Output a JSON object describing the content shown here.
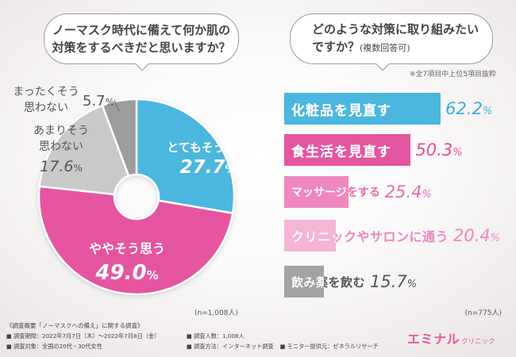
{
  "chart_data": [
    {
      "type": "pie",
      "question_lines": [
        "ノーマスク時代に備えて何か肌の",
        "対策をするべきだと思いますか？"
      ],
      "unit": "%",
      "slices": [
        {
          "label_lines": [
            "とてもそう思う"
          ],
          "value": 27.7,
          "value_label": "27.7",
          "color": "#4bb6de"
        },
        {
          "label_lines": [
            "ややそう思う"
          ],
          "value": 49.0,
          "value_label": "49.0",
          "color": "#e5559f"
        },
        {
          "label_lines": [
            "あまりそう",
            "思わない"
          ],
          "value": 17.6,
          "value_label": "17.6",
          "color": "#c9c9c9"
        },
        {
          "label_lines": [
            "まったくそう",
            "思わない"
          ],
          "value": 5.7,
          "value_label": "5.7",
          "color": "#9d9d9d"
        }
      ],
      "sample": "(n=1,008人)"
    },
    {
      "type": "bar",
      "question_lines": [
        "どのような対策に取り組みたい",
        "ですか？"
      ],
      "question_note": "(複数回答可)",
      "note": "※全7項目中上位5項目抜粋",
      "unit": "%",
      "categories": [
        "化粧品を見直す",
        "食生活を見直す",
        "マッサージをする",
        "クリニックやサロンに通う",
        "飲み薬を飲む"
      ],
      "values": [
        62.2,
        50.3,
        25.4,
        20.4,
        15.7
      ],
      "value_labels": [
        "62.2",
        "50.3",
        "25.4",
        "20.4",
        "15.7"
      ],
      "xlim": [
        0,
        100
      ],
      "bar_colors": [
        "#4bb6de",
        "#e5559f",
        "#ee88bf",
        "#f4b5d6",
        "#a3a3a3"
      ],
      "label_colors": [
        "#ffffff",
        "#ffffff",
        "#e96caf",
        "#ec86bd",
        "#555555"
      ],
      "value_colors": [
        "#3aaedb",
        "#e24f9a",
        "#e96caf",
        "#ec86bd",
        "#555555"
      ],
      "sample": "(n=775人)"
    }
  ],
  "survey": {
    "title": "《調査概要「ノーマスクへの備え」に関する調査》",
    "period": "■ 調査期間：2022年7月7日（木）～2022年7月8日（金）",
    "target": "■ 調査対象：全国の20代・30代女性",
    "count": "■ 調査人数：1,008人",
    "method": "■ 調査方法：インターネット調査",
    "provider": "■ モニター提供元：ゼネラルリサーチ"
  },
  "logo": {
    "main": "エミナル",
    "sub": "クリニック"
  }
}
